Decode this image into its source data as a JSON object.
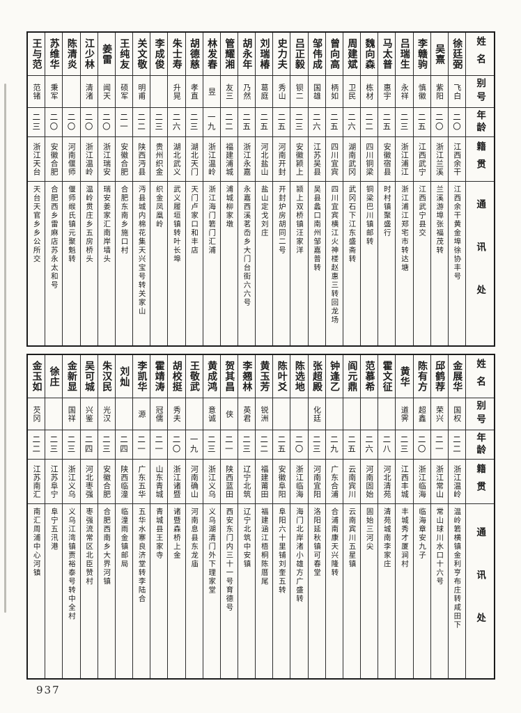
{
  "page": {
    "number": "937"
  },
  "colors": {
    "ink": "#1c1c1c",
    "paper": "#fbfaf6",
    "border": "#2b2b2b"
  },
  "headers": {
    "name": "姓名",
    "alias": "别号",
    "age": "年龄",
    "native": "籍贯",
    "contact": "通讯处"
  },
  "tables": [
    {
      "people": [
        {
          "name": "徐廷弼",
          "alias": "飞白",
          "age": "二〇",
          "native": "江西余干",
          "contact": "江西余干黄金埠徐协丰号"
        },
        {
          "name": "吴熹",
          "alias": "紫阳",
          "age": "二〇",
          "native": "浙江兰溪",
          "contact": "兰溪游埠张福茂转"
        },
        {
          "name": "李赣驹",
          "alias": "慎徽",
          "age": "二五",
          "native": "江西武宁",
          "contact": "江西武宁县交"
        },
        {
          "name": "吕瑞生",
          "alias": "永祥",
          "age": "二三",
          "native": "浙江浦江",
          "contact": "浙江浦江郑宅市转达塘"
        },
        {
          "name": "马太普",
          "alias": "惠宇",
          "age": "二五",
          "native": "安徽宿县",
          "contact": "时村镇聚盛行"
        },
        {
          "name": "魏向森",
          "alias": "栋材",
          "age": "二二",
          "native": "四川铜梁",
          "contact": "铜梁巴川镇邮转"
        },
        {
          "name": "周建斌",
          "alias": "卫民",
          "age": "二六",
          "native": "湖南武冈",
          "contact": "武冈石下江东盛斋转"
        },
        {
          "name": "曾向高",
          "alias": "柄如",
          "age": "二五",
          "native": "四川宜宾",
          "contact": "四川宜宾横江火神楼赵惠三转回龙场"
        },
        {
          "name": "邹伟成",
          "alias": "国雄",
          "age": "二六",
          "native": "江苏吴县",
          "contact": "吴县蠡口南州邹嘉普转"
        },
        {
          "name": "吕正毅",
          "alias": "钡二",
          "age": "二三",
          "native": "安徽颍上",
          "contact": "颍上双桥镇汪家洋"
        },
        {
          "name": "史力夫",
          "alias": "秀山",
          "age": "二五",
          "native": "河南开封",
          "contact": "开封炉房胡同二号"
        },
        {
          "name": "刘瑞椿",
          "alias": "葛庭",
          "age": "二五",
          "native": "河北盐山",
          "contact": "盐山定戈刘庄"
        },
        {
          "name": "胡永年",
          "alias": "乃然",
          "age": "二五",
          "native": "浙江永嘉",
          "contact": "永嘉西溪茗岙乡大门台街六六号"
        },
        {
          "name": "管耀湘",
          "alias": "友三",
          "age": "二二",
          "native": "福建浦城",
          "contact": "浦城柳家墩"
        },
        {
          "name": "林发春",
          "alias": "昱",
          "age": "一九",
          "native": "浙江温岭",
          "contact": "浙江海门箬门汇浦"
        },
        {
          "name": "胡德慈",
          "alias": "孝直",
          "age": "二三",
          "native": "湖北天门",
          "contact": "天门卢家口和丰店"
        },
        {
          "name": "朱士寿",
          "alias": "升晃",
          "age": "二六",
          "native": "湖北武义",
          "contact": "武义履垣镇转叶长埠"
        },
        {
          "name": "李成俊",
          "alias": "",
          "age": "二三",
          "native": "贵州织金",
          "contact": "织金凤凰岭"
        },
        {
          "name": "关文敬",
          "alias": "明甫",
          "age": "二二",
          "native": "陕西沔县",
          "contact": "沔县城内棉花集天兴宝号转关家山"
        },
        {
          "name": "王纯友",
          "alias": "硕军",
          "age": "二一",
          "native": "安徽合肥",
          "contact": "合肥东南乡施口村"
        },
        {
          "name": "姜雷",
          "alias": "闻天",
          "age": "二〇",
          "native": "浙江瑞安",
          "contact": "瑞安姜家汇南岸墙头"
        },
        {
          "name": "江少林",
          "alias": "清渚",
          "age": "二〇",
          "native": "浙江温岭",
          "contact": "温岭贯庄乡五房桥头"
        },
        {
          "name": "陈清炎",
          "alias": "",
          "age": "二〇",
          "native": "河南偃师",
          "contact": "偃师缑氏镇元聚魁转"
        },
        {
          "name": "苏维华",
          "alias": "秉军",
          "age": "二〇",
          "native": "安徽合肥",
          "contact": "合肥西乡雷麻店苏永太和号"
        },
        {
          "name": "王与范",
          "alias": "范锗",
          "age": "二三",
          "native": "浙江天台",
          "contact": "天台天官乡乡公所交"
        }
      ]
    },
    {
      "people": [
        {
          "name": "金展华",
          "alias": "国权",
          "age": "二二",
          "native": "浙江温岭",
          "contact": "温岭箬横镇金利亨布庄转咸田下"
        },
        {
          "name": "邱鹤荐",
          "alias": "荣兴",
          "age": "二一",
          "native": "浙江常山",
          "contact": "常山球川水口十六号"
        },
        {
          "name": "陈有方",
          "alias": "超鑫",
          "age": "二〇",
          "native": "浙江临海",
          "contact": "临海章安九子"
        },
        {
          "name": "黄华",
          "alias": "道霁",
          "age": "二三",
          "native": "江西丰城",
          "contact": "丰城秀才厦涧村"
        },
        {
          "name": "霍文征",
          "alias": "",
          "age": "二八",
          "native": "河北清苑",
          "contact": "清苑城南李家庄"
        },
        {
          "name": "范慕希",
          "alias": "",
          "age": "二六",
          "native": "河南固始",
          "contact": "固始三河尖"
        },
        {
          "name": "阎元鼎",
          "alias": "",
          "age": "二五",
          "native": "云南宾川",
          "contact": "云南宾川五星镇"
        },
        {
          "name": "钟逢乙",
          "alias": "",
          "age": "二九",
          "native": "广东合浦",
          "contact": "合浦南康天兴隆转"
        },
        {
          "name": "张超殿",
          "alias": "化廷",
          "age": "二三",
          "native": "河南宜阳",
          "contact": "洛阳延秋镇可春堂"
        },
        {
          "name": "陈选地",
          "alias": "",
          "age": "二〇",
          "native": "浙江临海",
          "contact": "海门北岸渚小雄方广盛转"
        },
        {
          "name": "陈叶爻",
          "alias": "",
          "age": "二五",
          "native": "安徽阜阳",
          "contact": "阜阳六十里铺刘奎五转"
        },
        {
          "name": "黄玉芳",
          "alias": "锐洲",
          "age": "二二",
          "native": "福建莆田",
          "contact": "福建涵江梧桐陈厝尾"
        },
        {
          "name": "李翘林",
          "alias": "英君",
          "age": "二三",
          "native": "辽宁北筑",
          "contact": "辽宁北筑中安镇"
        },
        {
          "name": "贺其昌",
          "alias": "侠",
          "age": "二一",
          "native": "陕西蓝田",
          "contact": "西安东门内三十一号育德号"
        },
        {
          "name": "黄成鸿",
          "alias": "意诚",
          "age": "二三",
          "native": "浙江义乌",
          "contact": "义乌湖清门外下理家堂"
        },
        {
          "name": "王敬武",
          "alias": "",
          "age": "一九",
          "native": "河南确山",
          "contact": "河南息县东龙庙"
        },
        {
          "name": "胡校挺",
          "alias": "秀夫",
          "age": "二〇",
          "native": "浙江诸暨",
          "contact": "诸暨森桥上金"
        },
        {
          "name": "霍靖涛",
          "alias": "冠儒",
          "age": "二一",
          "native": "山东青城",
          "contact": "青城县王家寺"
        },
        {
          "name": "李凯华",
          "alias": "源",
          "age": "二一",
          "native": "广东五华",
          "contact": "五华水寨良济堂转李陆合"
        },
        {
          "name": "刘灿",
          "alias": "",
          "age": "二四",
          "native": "陕西临潼",
          "contact": "临潼雨金镇邮局"
        },
        {
          "name": "朱汉民",
          "alias": "光汉",
          "age": "二三",
          "native": "安徽合肥",
          "contact": "合肥西南乡大界河镇"
        },
        {
          "name": "吴可城",
          "alias": "兴鉴",
          "age": "二四",
          "native": "河北枣强",
          "contact": "枣强流常区北臣赞村"
        },
        {
          "name": "金新显",
          "alias": "国祥",
          "age": "二三",
          "native": "浙江义乌",
          "contact": "义乌江湾镇贾裕泰号转中全村"
        },
        {
          "name": "徐庄",
          "alias": "",
          "age": "二三",
          "native": "江苏阜宁",
          "contact": "阜宁五汛港"
        },
        {
          "name": "金玉如",
          "alias": "芡冈",
          "age": "二二",
          "native": "江苏南汇",
          "contact": "南汇周浦中心河镇"
        }
      ]
    }
  ]
}
